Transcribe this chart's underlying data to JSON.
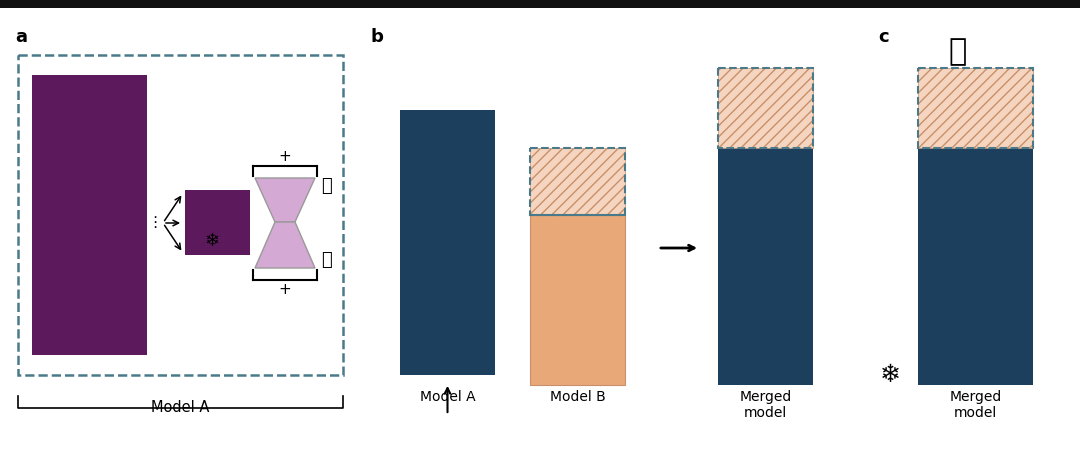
{
  "bg_color": "#ffffff",
  "dark_navy": "#1c3f5e",
  "peach": "#e8a878",
  "peach_light": "#f5d5bf",
  "purple_dark": "#5c1a5c",
  "purple_light": "#d4aad4",
  "dashed_border_color": "#4a7a8a",
  "panel_a_label": "a",
  "panel_b_label": "b",
  "panel_c_label": "c",
  "model_a_label": "Model A",
  "model_b_label": "Model B",
  "merged_label": "Merged\nmodel"
}
